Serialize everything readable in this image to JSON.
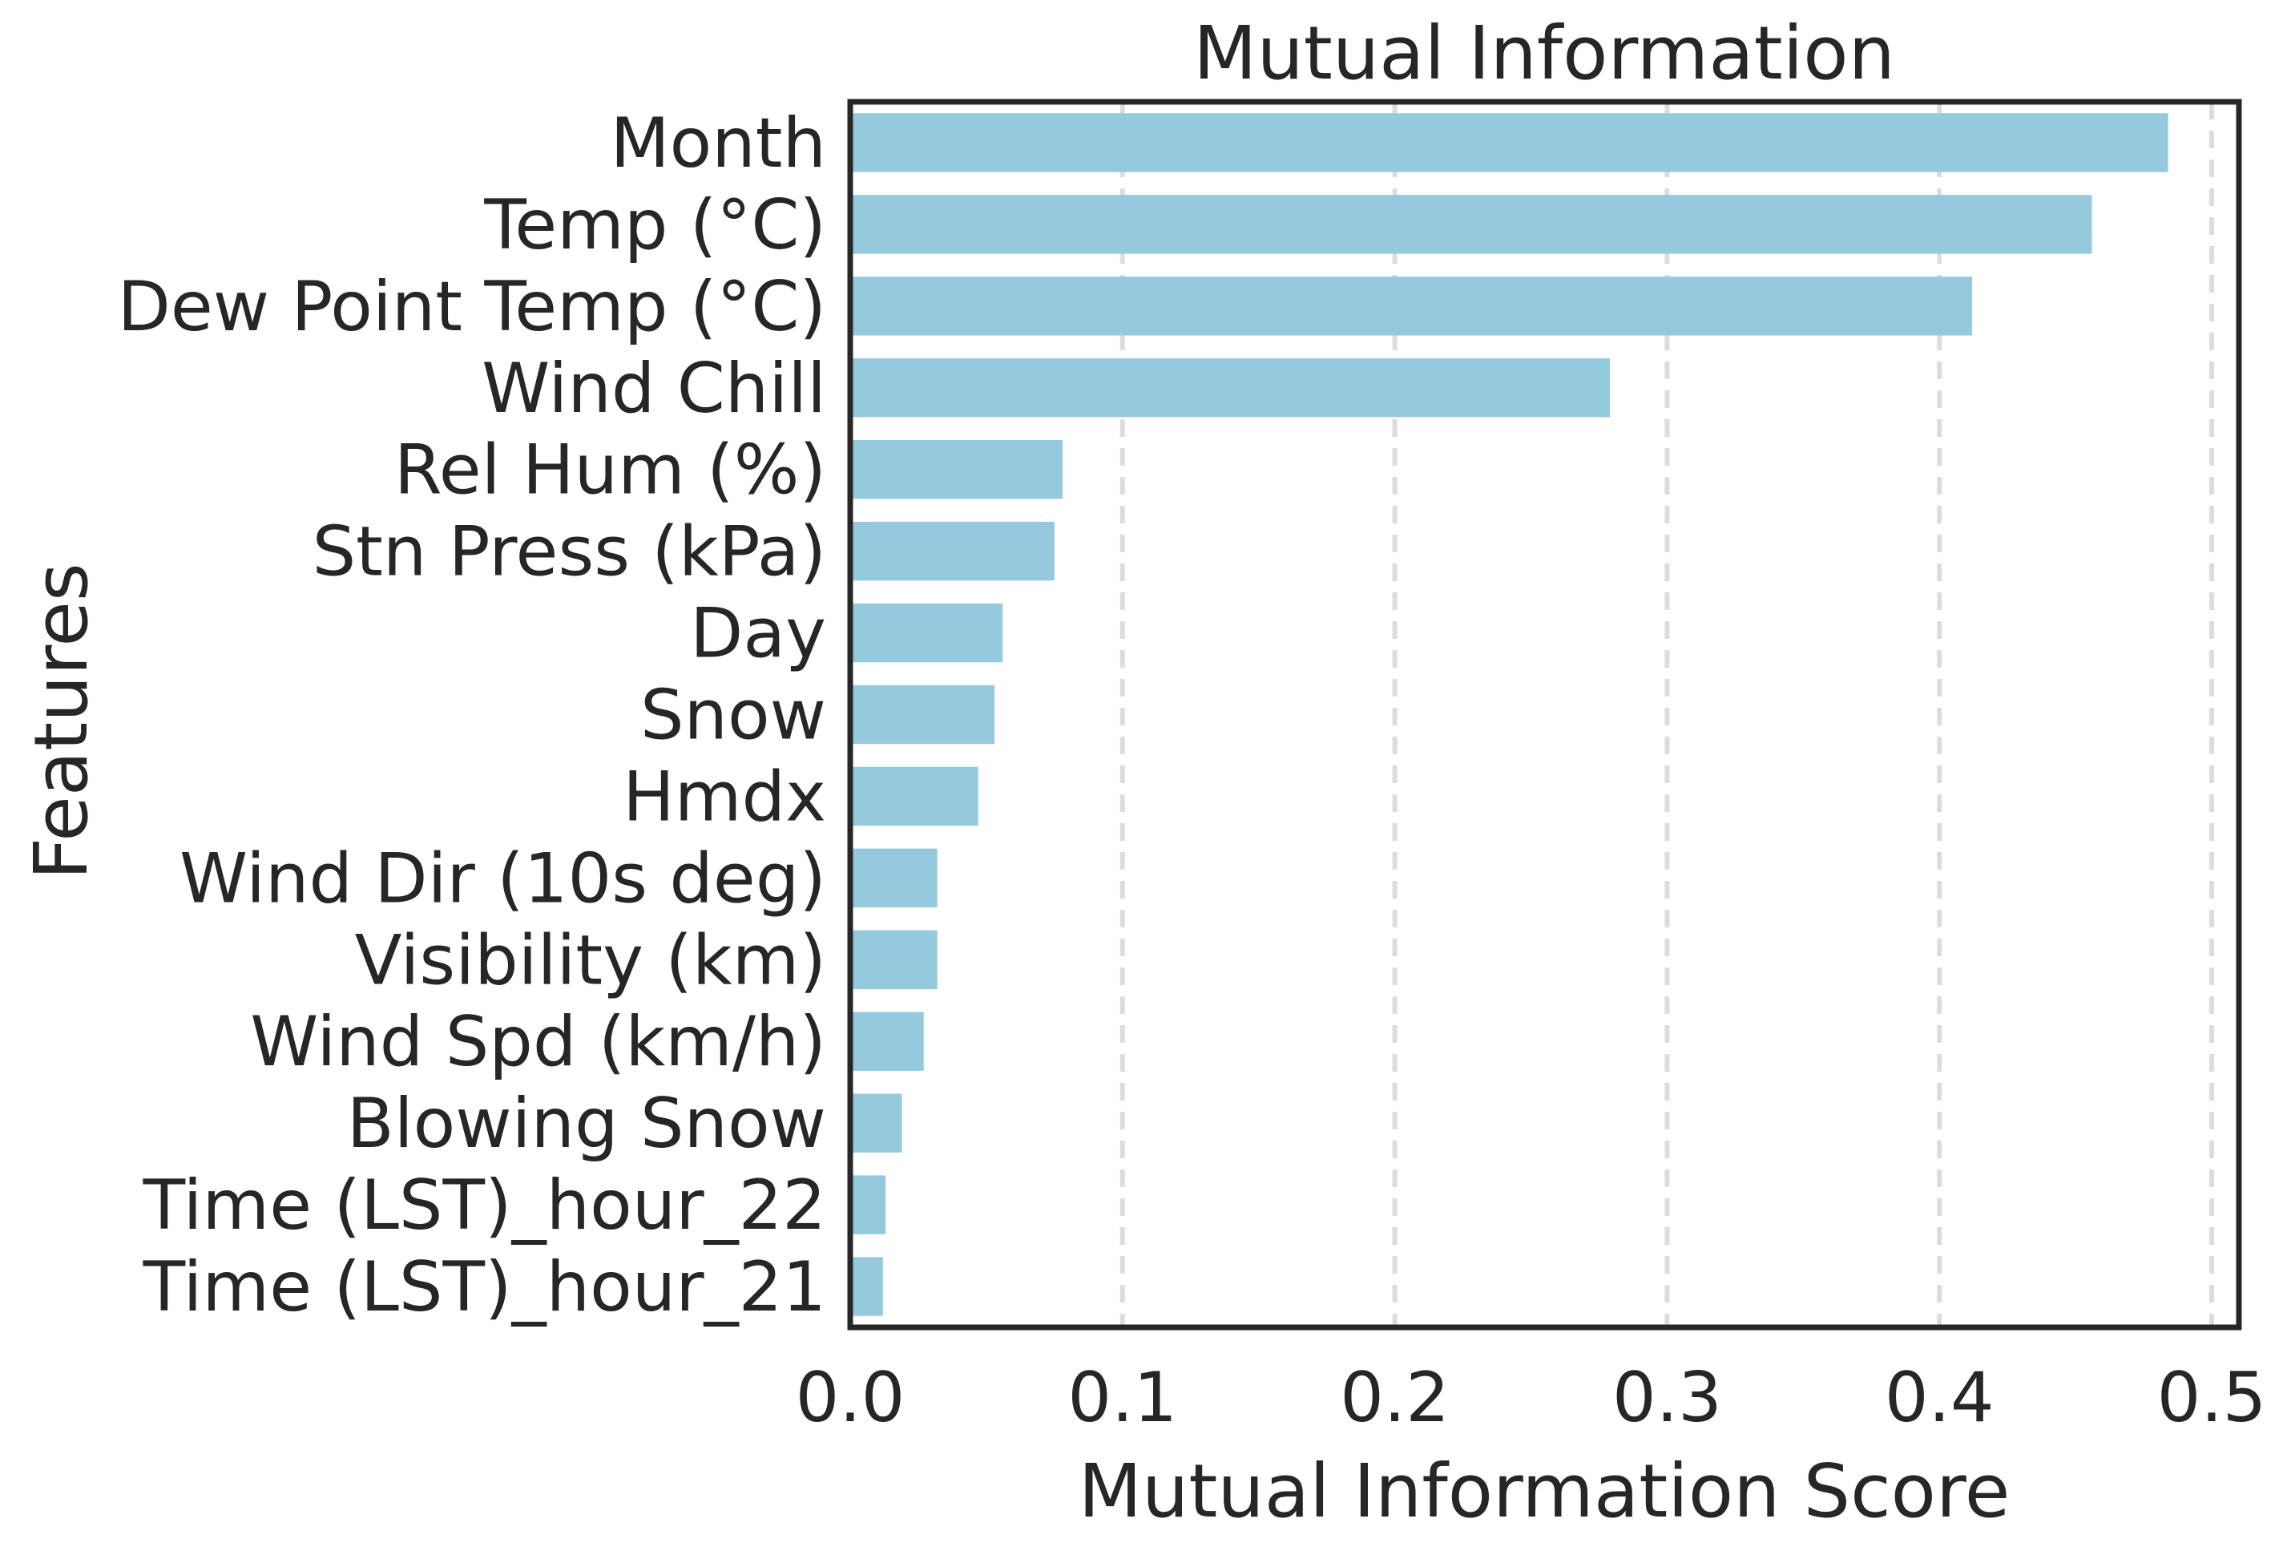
{
  "chart_data": {
    "type": "bar",
    "orientation": "horizontal",
    "title": "Mutual Information",
    "xlabel": "Mutual Information Score",
    "ylabel": "Features",
    "categories": [
      "Month",
      "Temp (°C)",
      "Dew Point Temp (°C)",
      "Wind Chill",
      "Rel Hum (%)",
      "Stn Press (kPa)",
      "Day",
      "Snow",
      "Hmdx",
      "Wind Dir (10s deg)",
      "Visibility (km)",
      "Wind Spd (km/h)",
      "Blowing Snow",
      "Time (LST)_hour_22",
      "Time (LST)_hour_21"
    ],
    "values": [
      0.484,
      0.456,
      0.412,
      0.279,
      0.078,
      0.075,
      0.056,
      0.053,
      0.047,
      0.032,
      0.032,
      0.027,
      0.019,
      0.013,
      0.012
    ],
    "xlim": [
      0.0,
      0.51
    ],
    "xticks": [
      0.0,
      0.1,
      0.2,
      0.3,
      0.4,
      0.5
    ],
    "xtick_labels": [
      "0.0",
      "0.1",
      "0.2",
      "0.3",
      "0.4",
      "0.5"
    ],
    "grid": "vertical dashed",
    "bar_color": "#95cade"
  }
}
